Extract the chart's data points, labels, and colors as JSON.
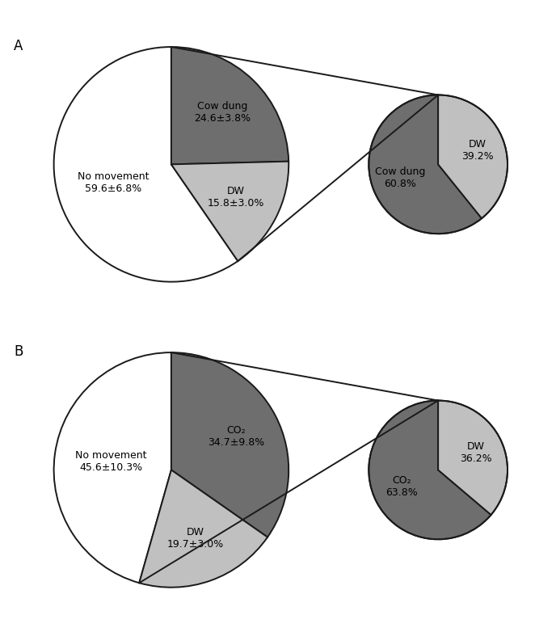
{
  "panel_A": {
    "label": "A",
    "left_pie": {
      "slices": [
        59.6,
        24.6,
        15.8
      ],
      "labels": [
        "No movement\n59.6±6.8%",
        "Cow dung\n24.6±3.8%",
        "DW\n15.8±3.0%"
      ]
    },
    "right_pie": {
      "slices": [
        60.8,
        39.2
      ],
      "labels": [
        "Cow dung\n60.8%",
        "DW\n39.2%"
      ]
    }
  },
  "panel_B": {
    "label": "B",
    "left_pie": {
      "slices": [
        45.6,
        34.7,
        19.7
      ],
      "labels": [
        "No movement\n45.6±10.3%",
        "CO₂\n34.7±9.8%",
        "DW\n19.7±3.0%"
      ]
    },
    "right_pie": {
      "slices": [
        63.8,
        36.2
      ],
      "labels": [
        "CO₂\n63.8%",
        "DW\n36.2%"
      ]
    }
  },
  "dark_color": "#6e6e6e",
  "light_color": "#c0c0c0",
  "white_color": "#ffffff",
  "edge_color": "#1a1a1a",
  "background": "#ffffff",
  "fontsize": 9,
  "label_fontsize": 12
}
